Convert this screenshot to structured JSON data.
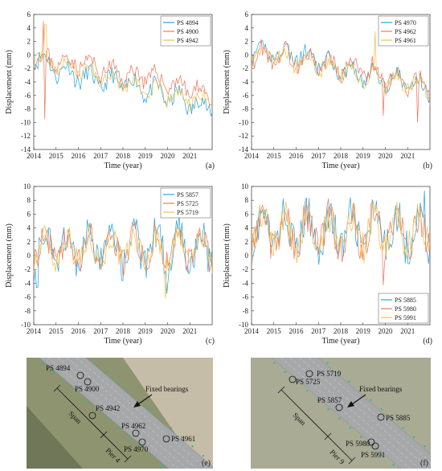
{
  "figure": {
    "panels": [
      {
        "id": "a",
        "panel_label": "(a)",
        "ylabel": "Displacement (mm)",
        "xlabel": "Time (year)",
        "ylim": [
          -14,
          6
        ],
        "yticks": [
          -14,
          -12,
          -10,
          -8,
          -6,
          -4,
          -2,
          0,
          2,
          4,
          6
        ],
        "xlim": [
          2014,
          2022
        ],
        "xticks": [
          2014,
          2015,
          2016,
          2017,
          2018,
          2019,
          2020,
          2021
        ],
        "legend_pos": "top-right",
        "series": [
          {
            "name": "PS 4894",
            "color": "#2aa7e0",
            "seed": 11,
            "base": [
              0,
              -2,
              -3,
              -4,
              -4,
              -5,
              -6,
              -7,
              -8
            ],
            "amp": 2.0,
            "spikes": []
          },
          {
            "name": "PS 4900",
            "color": "#f07a5e",
            "seed": 23,
            "base": [
              0,
              -1,
              -1,
              -2,
              -3,
              -3,
              -4,
              -5,
              -6
            ],
            "amp": 1.8,
            "spikes": [
              [
                2014.42,
                5.0
              ],
              [
                2014.5,
                -9.5
              ]
            ]
          },
          {
            "name": "PS 4942",
            "color": "#f2c14f",
            "seed": 37,
            "base": [
              0,
              -1.5,
              -2,
              -3,
              -4,
              -5,
              -6,
              -6.5,
              -7
            ],
            "amp": 1.6,
            "spikes": [
              [
                2014.52,
                4.5
              ]
            ]
          }
        ]
      },
      {
        "id": "b",
        "panel_label": "(b)",
        "ylabel": "Displacement (mm)",
        "xlabel": "Time (year)",
        "ylim": [
          -14,
          6
        ],
        "yticks": [
          -14,
          -12,
          -10,
          -8,
          -6,
          -4,
          -2,
          0,
          2,
          4,
          6
        ],
        "xlim": [
          2014,
          2022
        ],
        "xticks": [
          2014,
          2015,
          2016,
          2017,
          2018,
          2019,
          2020,
          2021
        ],
        "legend_pos": "top-right",
        "series": [
          {
            "name": "PS 4970",
            "color": "#2aa7e0",
            "seed": 41,
            "base": [
              0,
              0.5,
              0,
              -1,
              -2,
              -3,
              -3.5,
              -4,
              -5
            ],
            "amp": 1.8,
            "spikes": []
          },
          {
            "name": "PS 4962",
            "color": "#f07a5e",
            "seed": 53,
            "base": [
              0,
              0,
              -0.5,
              -1,
              -2,
              -2,
              -3,
              -4,
              -5
            ],
            "amp": 2.0,
            "spikes": [
              [
                2019.9,
                -9.0
              ],
              [
                2021.45,
                -10.0
              ]
            ]
          },
          {
            "name": "PS 4961",
            "color": "#f2c14f",
            "seed": 67,
            "base": [
              0,
              0,
              -1,
              -1.5,
              -2,
              -3,
              -4,
              -4,
              -5
            ],
            "amp": 1.7,
            "spikes": [
              [
                2019.55,
                3.5
              ]
            ]
          }
        ]
      },
      {
        "id": "c",
        "panel_label": "(c)",
        "ylabel": "Displacement (mm)",
        "xlabel": "Time (year)",
        "ylim": [
          -10,
          10
        ],
        "yticks": [
          -10,
          -8,
          -6,
          -4,
          -2,
          0,
          2,
          4,
          6,
          8,
          10
        ],
        "xlim": [
          2014,
          2022
        ],
        "xticks": [
          2014,
          2015,
          2016,
          2017,
          2018,
          2019,
          2020,
          2021
        ],
        "legend_pos": "top-right",
        "series": [
          {
            "name": "PS 5857",
            "color": "#2aa7e0",
            "seed": 71,
            "base": [
              1,
              1,
              1,
              1,
              1,
              1,
              1,
              1,
              1
            ],
            "amp": 4.0,
            "spikes": [
              [
                2014.15,
                -4.6
              ],
              [
                2019.95,
                -5.5
              ]
            ]
          },
          {
            "name": "PS 5725",
            "color": "#f07a5e",
            "seed": 83,
            "base": [
              1,
              1,
              1,
              1,
              1,
              1,
              1,
              1,
              1
            ],
            "amp": 3.2,
            "spikes": []
          },
          {
            "name": "PS 5719",
            "color": "#f2c14f",
            "seed": 97,
            "base": [
              1,
              1,
              1,
              1,
              1,
              1,
              1,
              1,
              1
            ],
            "amp": 3.0,
            "spikes": [
              [
                2019.9,
                -6.2
              ]
            ]
          }
        ]
      },
      {
        "id": "d",
        "panel_label": "(d)",
        "ylabel": "Displacement (mm)",
        "xlabel": "Time (year)",
        "ylim": [
          -10,
          10
        ],
        "yticks": [
          -10,
          -8,
          -6,
          -4,
          -2,
          0,
          2,
          4,
          6,
          8,
          10
        ],
        "xlim": [
          2014,
          2022
        ],
        "xticks": [
          2014,
          2015,
          2016,
          2017,
          2018,
          2019,
          2020,
          2021
        ],
        "legend_pos": "bottom-right",
        "series": [
          {
            "name": "PS 5885",
            "color": "#2aa7e0",
            "seed": 101,
            "base": [
              3.5,
              3.5,
              3.5,
              3.5,
              3.5,
              3.5,
              3.5,
              3.5,
              3.5
            ],
            "amp": 4.2,
            "spikes": [
              [
                2021.75,
                9.4
              ]
            ]
          },
          {
            "name": "PS 5980",
            "color": "#f07a5e",
            "seed": 113,
            "base": [
              3.5,
              3.5,
              3.5,
              3.5,
              3.5,
              3.5,
              3.5,
              3.5,
              3.5
            ],
            "amp": 4.0,
            "spikes": [
              [
                2019.9,
                -4.3
              ]
            ]
          },
          {
            "name": "PS 5991",
            "color": "#f2c14f",
            "seed": 127,
            "base": [
              3.5,
              3.5,
              3.5,
              3.5,
              3.5,
              3.5,
              3.5,
              3.5,
              3.5
            ],
            "amp": 3.8,
            "spikes": []
          }
        ]
      }
    ],
    "maps": [
      {
        "id": "e",
        "panel_label": "(e)",
        "annotation": "Fixed bearings",
        "span_label": "Span",
        "pier_label": "Pier 4",
        "points": [
          "PS 4894",
          "PS 4900",
          "PS 4942",
          "PS 4962",
          "PS 4970",
          "PS 4961"
        ]
      },
      {
        "id": "f",
        "panel_label": "(f)",
        "annotation": "Fixed bearings",
        "span_label": "Span",
        "pier_label": "Pier 9",
        "points": [
          "PS 5719",
          "PS 5725",
          "PS 5857",
          "PS 5885",
          "PS 5980",
          "PS 5991"
        ]
      }
    ]
  }
}
